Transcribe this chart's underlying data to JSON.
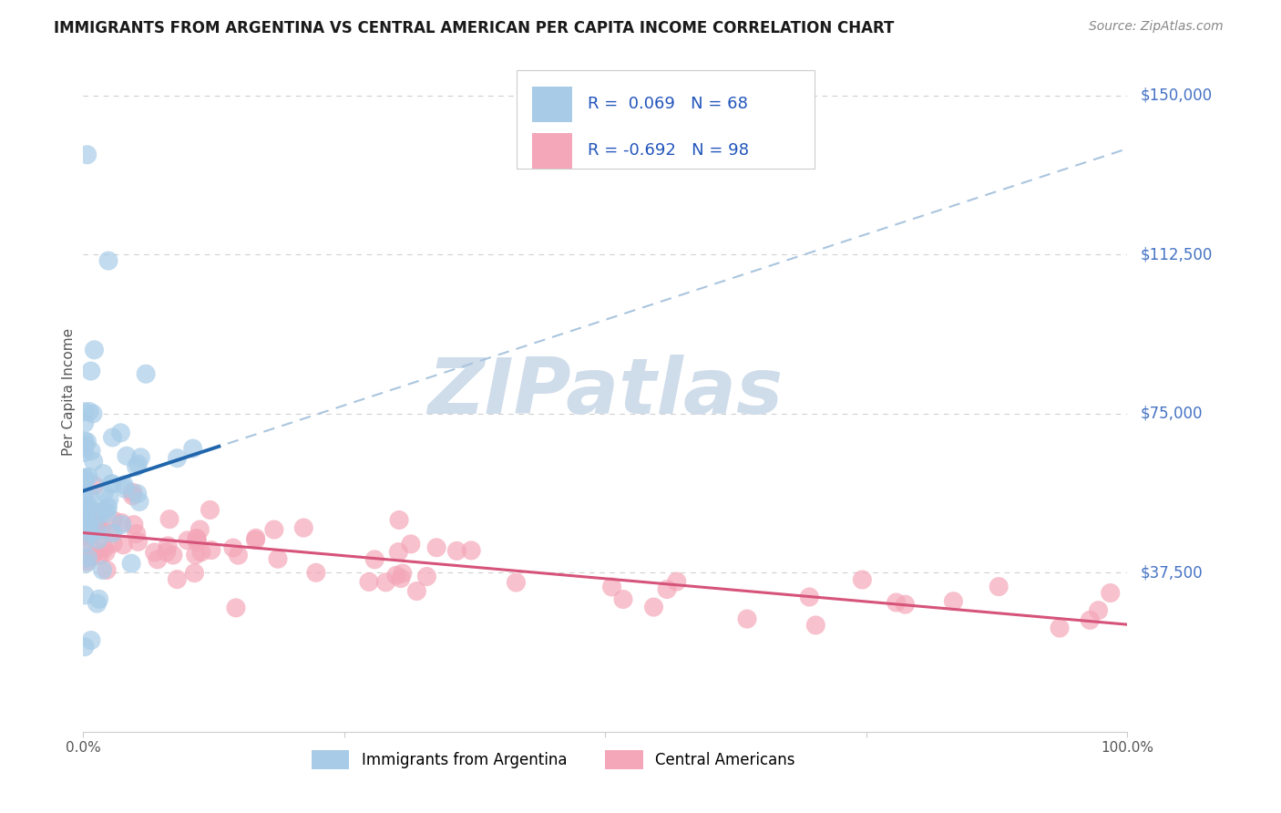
{
  "title": "IMMIGRANTS FROM ARGENTINA VS CENTRAL AMERICAN PER CAPITA INCOME CORRELATION CHART",
  "source": "Source: ZipAtlas.com",
  "ylabel": "Per Capita Income",
  "xlim": [
    0.0,
    1.0
  ],
  "ylim": [
    0,
    160000
  ],
  "yticks": [
    37500,
    75000,
    112500,
    150000
  ],
  "ytick_labels": [
    "$37,500",
    "$75,000",
    "$112,500",
    "$150,000"
  ],
  "xticks": [
    0.0,
    0.25,
    0.5,
    0.75,
    1.0
  ],
  "xtick_labels": [
    "0.0%",
    "",
    "",
    "",
    "100.0%"
  ],
  "argentina_R": 0.069,
  "argentina_N": 68,
  "central_R": -0.692,
  "central_N": 98,
  "blue_color": "#a8cce8",
  "pink_color": "#f4a7b9",
  "trend_blue": "#2166ac",
  "trend_pink": "#d6537a",
  "trend_dash_color": "#aac5de",
  "background_color": "#ffffff",
  "grid_color": "#d0d0d0",
  "watermark": "ZIPatlas",
  "watermark_color": "#cfdcea",
  "title_color": "#1a1a1a",
  "right_label_color": "#4472c4",
  "legend_text_color": "#2255bb",
  "legend_border_color": "#cccccc",
  "source_color": "#888888"
}
